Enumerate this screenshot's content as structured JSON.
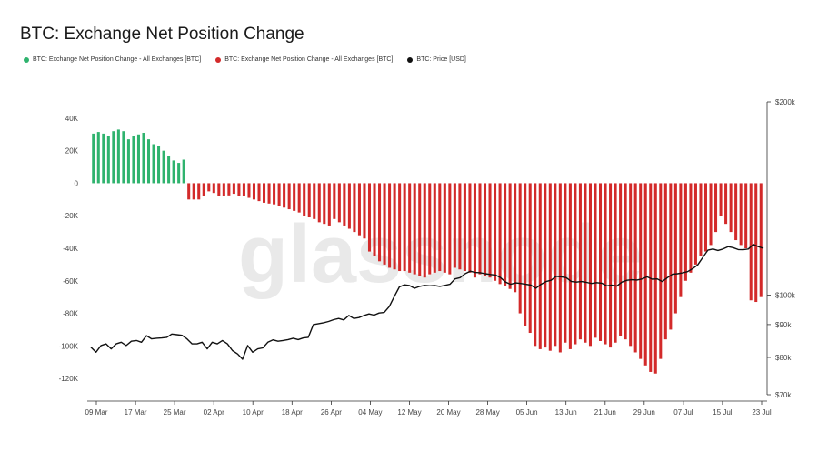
{
  "chart_data": {
    "type": "bar",
    "title": "BTC: Exchange Net Position Change",
    "watermark": "glassnode",
    "legend": [
      {
        "label": "BTC: Exchange Net Position Change - All Exchanges [BTC]",
        "color": "#2fb36e"
      },
      {
        "label": "BTC: Exchange Net Position Change - All Exchanges [BTC]",
        "color": "#d32a2a"
      },
      {
        "label": "BTC: Price [USD]",
        "color": "#111111"
      }
    ],
    "colors": {
      "positive": "#2fb36e",
      "negative": "#d32a2a",
      "price": "#111111"
    },
    "x_ticks": [
      "09 Mar",
      "17 Mar",
      "25 Mar",
      "02 Apr",
      "10 Apr",
      "18 Apr",
      "26 Apr",
      "04 May",
      "12 May",
      "20 May",
      "28 May",
      "05 Jun",
      "13 Jun",
      "21 Jun",
      "29 Jun",
      "07 Jul",
      "15 Jul",
      "23 Jul"
    ],
    "y_left": {
      "range": [
        -130000,
        50000
      ],
      "ticks": [
        40000,
        20000,
        0,
        -20000,
        -40000,
        -60000,
        -80000,
        -100000,
        -120000
      ],
      "tick_labels": [
        "40K",
        "20K",
        "0",
        "-20K",
        "-40K",
        "-60K",
        "-80K",
        "-100K",
        "-120K"
      ]
    },
    "y_right": {
      "type": "log",
      "range": [
        70000,
        200000
      ],
      "ticks": [
        200000,
        100000,
        90000,
        80000,
        70000
      ],
      "tick_labels": [
        "$200k",
        "$100k",
        "$90k",
        "$80k",
        "$70k"
      ]
    },
    "net_position_change": [
      30500,
      31500,
      30500,
      29000,
      32000,
      33000,
      32000,
      27000,
      29000,
      30000,
      31000,
      27000,
      24000,
      23000,
      20000,
      17000,
      14000,
      12500,
      14500,
      -10000,
      -10000,
      -10000,
      -8000,
      -5000,
      -6000,
      -8000,
      -8000,
      -7500,
      -6500,
      -8000,
      -8000,
      -9000,
      -10000,
      -11000,
      -12000,
      -12500,
      -13000,
      -14000,
      -15000,
      -16000,
      -17000,
      -18000,
      -20000,
      -21000,
      -22000,
      -24000,
      -25000,
      -26000,
      -22000,
      -24000,
      -26000,
      -28000,
      -30000,
      -32000,
      -34000,
      -42000,
      -45000,
      -48000,
      -50000,
      -52000,
      -53000,
      -54000,
      -54000,
      -55000,
      -56000,
      -57000,
      -58000,
      -56000,
      -55000,
      -54000,
      -55000,
      -56000,
      -52000,
      -53000,
      -54000,
      -55000,
      -58000,
      -56000,
      -57000,
      -58000,
      -60000,
      -62000,
      -63000,
      -65000,
      -67000,
      -80000,
      -88000,
      -92000,
      -100000,
      -102000,
      -101000,
      -103000,
      -100000,
      -104000,
      -98000,
      -102000,
      -99000,
      -96000,
      -98000,
      -100000,
      -95000,
      -97000,
      -99000,
      -101000,
      -98000,
      -94000,
      -96000,
      -100000,
      -104000,
      -108000,
      -112000,
      -116000,
      -117000,
      -108000,
      -96000,
      -90000,
      -80000,
      -70000,
      -60000,
      -55000,
      -50000,
      -45000,
      -42000,
      -38000,
      -30000,
      -20000,
      -25000,
      -30000,
      -35000,
      -38000,
      -40000,
      -72000,
      -73000,
      -70000
    ],
    "price": [
      83000,
      81500,
      83500,
      84000,
      82500,
      84000,
      84500,
      83500,
      84800,
      85000,
      84500,
      86500,
      85500,
      85700,
      85800,
      86000,
      87000,
      86800,
      86600,
      85500,
      84000,
      84000,
      84500,
      82500,
      84500,
      84000,
      85000,
      84000,
      82000,
      81000,
      79500,
      83500,
      81500,
      82500,
      82800,
      84500,
      85200,
      84800,
      85000,
      85300,
      85700,
      85300,
      85800,
      86000,
      90000,
      90300,
      90600,
      91000,
      91600,
      92000,
      91500,
      93000,
      92000,
      92300,
      93000,
      93500,
      93100,
      93800,
      94000,
      96000,
      99500,
      103000,
      103800,
      103500,
      102500,
      103200,
      103600,
      103400,
      103500,
      103200,
      103600,
      104000,
      106000,
      106500,
      108000,
      109000,
      108500,
      108400,
      108000,
      107700,
      107500,
      106500,
      104800,
      104000,
      104500,
      104300,
      104000,
      103700,
      102500,
      104000,
      105000,
      105500,
      107000,
      106800,
      106500,
      105000,
      104800,
      105000,
      104700,
      104300,
      104600,
      104400,
      103400,
      103700,
      103300,
      104800,
      105500,
      105700,
      105600,
      106000,
      106800,
      105900,
      106000,
      105000,
      106500,
      107800,
      108000,
      108300,
      108800,
      110000,
      111500,
      114500,
      117500,
      118000,
      117400,
      118000,
      119000,
      118600,
      117800,
      117700,
      118000,
      120000,
      119000,
      118300
    ]
  }
}
